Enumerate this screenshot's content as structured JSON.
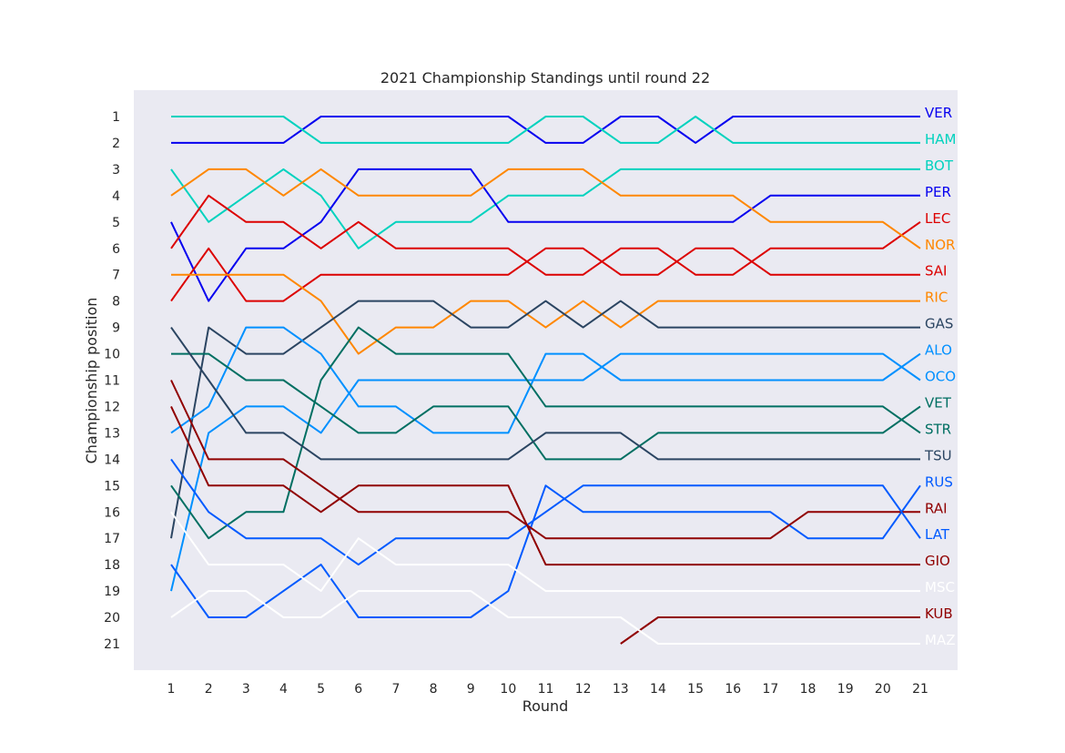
{
  "chart_data": {
    "type": "line",
    "title": "2021 Championship Standings until round 22",
    "xlabel": "Round",
    "ylabel": "Championship position",
    "x": [
      1,
      2,
      3,
      4,
      5,
      6,
      7,
      8,
      9,
      10,
      11,
      12,
      13,
      14,
      15,
      16,
      17,
      18,
      19,
      20,
      21
    ],
    "xlim": [
      1,
      21
    ],
    "ylim": [
      1,
      21
    ],
    "y_inverted": true,
    "grid": false,
    "legend": "labels at line ends (right)",
    "colors": {
      "background": "#eaeaf2"
    },
    "series": [
      {
        "name": "VER",
        "color": "#0600ef",
        "values": [
          2,
          2,
          2,
          2,
          1,
          1,
          1,
          1,
          1,
          1,
          2,
          2,
          1,
          1,
          2,
          1,
          1,
          1,
          1,
          1,
          1
        ]
      },
      {
        "name": "HAM",
        "color": "#00d2be",
        "values": [
          1,
          1,
          1,
          1,
          2,
          2,
          2,
          2,
          2,
          2,
          1,
          1,
          2,
          2,
          1,
          2,
          2,
          2,
          2,
          2,
          2
        ]
      },
      {
        "name": "BOT",
        "color": "#00d2be",
        "values": [
          3,
          5,
          4,
          3,
          4,
          6,
          5,
          5,
          5,
          4,
          4,
          4,
          3,
          3,
          3,
          3,
          3,
          3,
          3,
          3,
          3
        ]
      },
      {
        "name": "PER",
        "color": "#0600ef",
        "values": [
          5,
          8,
          6,
          6,
          5,
          3,
          3,
          3,
          3,
          5,
          5,
          5,
          5,
          5,
          5,
          5,
          4,
          4,
          4,
          4,
          4
        ]
      },
      {
        "name": "LEC",
        "color": "#dc0000",
        "values": [
          6,
          4,
          5,
          5,
          6,
          5,
          6,
          6,
          6,
          6,
          7,
          7,
          6,
          6,
          7,
          7,
          6,
          6,
          6,
          6,
          5
        ]
      },
      {
        "name": "NOR",
        "color": "#ff8700",
        "values": [
          4,
          3,
          3,
          4,
          3,
          4,
          4,
          4,
          4,
          3,
          3,
          3,
          4,
          4,
          4,
          4,
          5,
          5,
          5,
          5,
          6
        ]
      },
      {
        "name": "SAI",
        "color": "#dc0000",
        "values": [
          8,
          6,
          8,
          8,
          7,
          7,
          7,
          7,
          7,
          7,
          6,
          6,
          7,
          7,
          6,
          6,
          7,
          7,
          7,
          7,
          7
        ]
      },
      {
        "name": "RIC",
        "color": "#ff8700",
        "values": [
          7,
          7,
          7,
          7,
          8,
          10,
          9,
          9,
          8,
          8,
          9,
          8,
          9,
          8,
          8,
          8,
          8,
          8,
          8,
          8,
          8
        ]
      },
      {
        "name": "GAS",
        "color": "#2b4562",
        "values": [
          17,
          9,
          10,
          10,
          9,
          8,
          8,
          8,
          9,
          9,
          8,
          9,
          8,
          9,
          9,
          9,
          9,
          9,
          9,
          9,
          9
        ]
      },
      {
        "name": "ALO",
        "color": "#0090ff",
        "values": [
          13,
          12,
          9,
          9,
          10,
          12,
          12,
          13,
          13,
          13,
          10,
          10,
          11,
          11,
          11,
          11,
          11,
          11,
          11,
          11,
          10
        ]
      },
      {
        "name": "OCO",
        "color": "#0090ff",
        "values": [
          19,
          13,
          12,
          12,
          13,
          11,
          11,
          11,
          11,
          11,
          11,
          11,
          10,
          10,
          10,
          10,
          10,
          10,
          10,
          10,
          11
        ]
      },
      {
        "name": "VET",
        "color": "#006f62",
        "values": [
          10,
          10,
          11,
          11,
          12,
          13,
          13,
          12,
          12,
          12,
          14,
          14,
          14,
          13,
          13,
          13,
          13,
          13,
          13,
          13,
          12
        ]
      },
      {
        "name": "STR",
        "color": "#006f62",
        "values": [
          15,
          17,
          16,
          16,
          11,
          9,
          10,
          10,
          10,
          10,
          12,
          12,
          12,
          12,
          12,
          12,
          12,
          12,
          12,
          12,
          13
        ]
      },
      {
        "name": "TSU",
        "color": "#2b4562",
        "values": [
          9,
          11,
          13,
          13,
          14,
          14,
          14,
          14,
          14,
          14,
          13,
          13,
          13,
          14,
          14,
          14,
          14,
          14,
          14,
          14,
          14
        ]
      },
      {
        "name": "RUS",
        "color": "#005aff",
        "values": [
          18,
          20,
          20,
          19,
          18,
          20,
          20,
          20,
          20,
          19,
          15,
          16,
          16,
          16,
          16,
          16,
          16,
          17,
          17,
          17,
          15
        ]
      },
      {
        "name": "RAI",
        "color": "#900000",
        "values": [
          11,
          14,
          14,
          14,
          15,
          16,
          16,
          16,
          16,
          16,
          17,
          17,
          17,
          17,
          17,
          17,
          17,
          16,
          16,
          16,
          16
        ]
      },
      {
        "name": "LAT",
        "color": "#005aff",
        "values": [
          14,
          16,
          17,
          17,
          17,
          18,
          17,
          17,
          17,
          17,
          16,
          15,
          15,
          15,
          15,
          15,
          15,
          15,
          15,
          15,
          17
        ]
      },
      {
        "name": "GIO",
        "color": "#900000",
        "values": [
          12,
          15,
          15,
          15,
          16,
          15,
          15,
          15,
          15,
          15,
          18,
          18,
          18,
          18,
          18,
          18,
          18,
          18,
          18,
          18,
          18
        ]
      },
      {
        "name": "MSC",
        "color": "#ffffff",
        "values": [
          16,
          18,
          18,
          18,
          19,
          17,
          18,
          18,
          18,
          18,
          19,
          19,
          19,
          19,
          19,
          19,
          19,
          19,
          19,
          19,
          19
        ]
      },
      {
        "name": "KUB",
        "color": "#900000",
        "values": [
          null,
          null,
          null,
          null,
          null,
          null,
          null,
          null,
          null,
          null,
          null,
          null,
          21,
          20,
          20,
          20,
          20,
          20,
          20,
          20,
          20
        ]
      },
      {
        "name": "MAZ",
        "color": "#ffffff",
        "values": [
          20,
          19,
          19,
          20,
          20,
          19,
          19,
          19,
          19,
          20,
          20,
          20,
          20,
          21,
          21,
          21,
          21,
          21,
          21,
          21,
          21
        ]
      }
    ]
  }
}
